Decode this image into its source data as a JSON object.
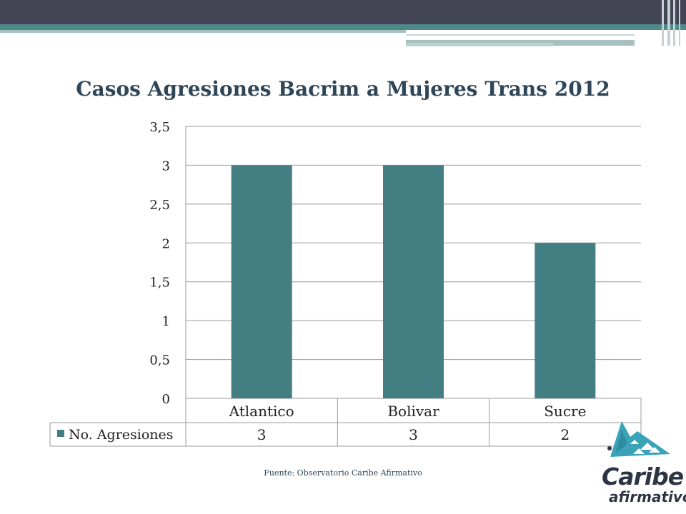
{
  "slide": {
    "source_text": "Fuente: Observatorio Caribe Afirmativo",
    "logo_text_main": "Caribe",
    "logo_text_sub": "afirmativo"
  },
  "colors": {
    "bar": "#437e82",
    "title": "#2f4658",
    "grid": "#9a9a9a",
    "header": "#434454",
    "accent": "#4e8a8a"
  },
  "chart_data": {
    "type": "bar",
    "title": "Casos Agresiones Bacrim a Mujeres Trans 2012",
    "categories": [
      "Atlantico",
      "Bolivar",
      "Sucre"
    ],
    "series": [
      {
        "name": "No. Agresiones",
        "values": [
          3,
          3,
          2
        ]
      }
    ],
    "data_table_values": [
      "3",
      "3",
      "2"
    ],
    "ylim": [
      0,
      3.5
    ],
    "yticks": [
      0,
      0.5,
      1,
      1.5,
      2,
      2.5,
      3,
      3.5
    ],
    "ytick_labels": [
      "0",
      "0,5",
      "1",
      "1,5",
      "2",
      "2,5",
      "3",
      "3,5"
    ],
    "grid": true,
    "legend": "data-table-left"
  }
}
